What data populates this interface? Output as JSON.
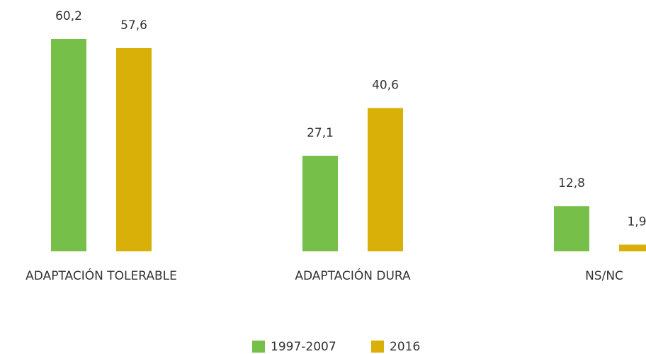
{
  "chart_data": {
    "type": "bar",
    "categories": [
      "ADAPTACIÓN TOLERABLE",
      "ADAPTACIÓN DURA",
      "NS/NC"
    ],
    "series": [
      {
        "name": "1997-2007",
        "color": "#76c04a",
        "values": [
          60.2,
          27.1,
          12.8
        ],
        "value_labels": [
          "60,2",
          "27,1",
          "12,8"
        ]
      },
      {
        "name": "2016",
        "color": "#d8b008",
        "values": [
          57.6,
          40.6,
          1.9
        ],
        "value_labels": [
          "57,6",
          "40,6",
          "1,9"
        ]
      }
    ]
  }
}
